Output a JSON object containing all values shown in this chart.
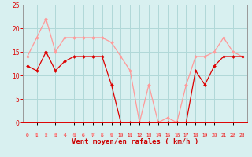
{
  "hours": [
    0,
    1,
    2,
    3,
    4,
    5,
    6,
    7,
    8,
    9,
    10,
    11,
    12,
    13,
    14,
    15,
    16,
    17,
    18,
    19,
    20,
    21,
    22,
    23
  ],
  "wind_avg": [
    12,
    11,
    15,
    11,
    13,
    14,
    14,
    14,
    14,
    8,
    0,
    0,
    0,
    0,
    0,
    0,
    0,
    0,
    11,
    8,
    12,
    14,
    14,
    14
  ],
  "wind_gust": [
    14,
    18,
    22,
    15,
    18,
    18,
    18,
    18,
    18,
    17,
    14,
    11,
    0,
    8,
    0,
    1,
    0,
    8,
    14,
    14,
    15,
    18,
    15,
    14
  ],
  "wind_avg_color": "#dd0000",
  "wind_gust_color": "#ff9999",
  "background_color": "#d8f0f0",
  "grid_color": "#b0d8d8",
  "xlabel": "Vent moyen/en rafales ( km/h )",
  "xlabel_color": "#cc0000",
  "ylim": [
    0,
    25
  ],
  "yticks": [
    0,
    5,
    10,
    15,
    20,
    25
  ],
  "arrow_hours_present": [
    0,
    1,
    2,
    3,
    4,
    5,
    6,
    7,
    8,
    9,
    10,
    18,
    19,
    20,
    21,
    22,
    23
  ]
}
